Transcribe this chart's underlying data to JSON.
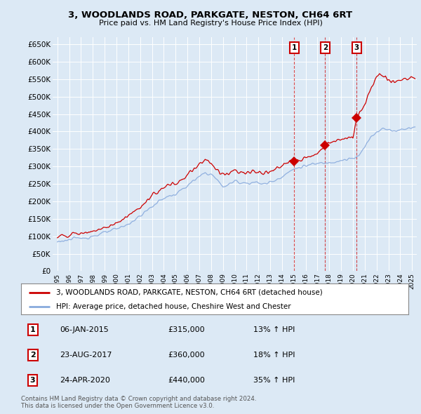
{
  "title": "3, WOODLANDS ROAD, PARKGATE, NESTON, CH64 6RT",
  "subtitle": "Price paid vs. HM Land Registry's House Price Index (HPI)",
  "ylim": [
    0,
    670000
  ],
  "yticks": [
    0,
    50000,
    100000,
    150000,
    200000,
    250000,
    300000,
    350000,
    400000,
    450000,
    500000,
    550000,
    600000,
    650000
  ],
  "ytick_labels": [
    "£0",
    "£50K",
    "£100K",
    "£150K",
    "£200K",
    "£250K",
    "£300K",
    "£350K",
    "£400K",
    "£450K",
    "£500K",
    "£550K",
    "£600K",
    "£650K"
  ],
  "background_color": "#dce9f5",
  "plot_bg_color": "#dce9f5",
  "grid_color": "#ffffff",
  "sale_color": "#cc0000",
  "hpi_color": "#88aadd",
  "sales": [
    {
      "date": 2015.04,
      "price": 315000,
      "label": "1"
    },
    {
      "date": 2017.65,
      "price": 360000,
      "label": "2"
    },
    {
      "date": 2020.32,
      "price": 440000,
      "label": "3"
    }
  ],
  "legend_sale_label": "3, WOODLANDS ROAD, PARKGATE, NESTON, CH64 6RT (detached house)",
  "legend_hpi_label": "HPI: Average price, detached house, Cheshire West and Chester",
  "table_rows": [
    {
      "num": "1",
      "date": "06-JAN-2015",
      "price": "£315,000",
      "change": "13% ↑ HPI"
    },
    {
      "num": "2",
      "date": "23-AUG-2017",
      "price": "£360,000",
      "change": "18% ↑ HPI"
    },
    {
      "num": "3",
      "date": "24-APR-2020",
      "price": "£440,000",
      "change": "35% ↑ HPI"
    }
  ],
  "footer": "Contains HM Land Registry data © Crown copyright and database right 2024.\nThis data is licensed under the Open Government Licence v3.0."
}
